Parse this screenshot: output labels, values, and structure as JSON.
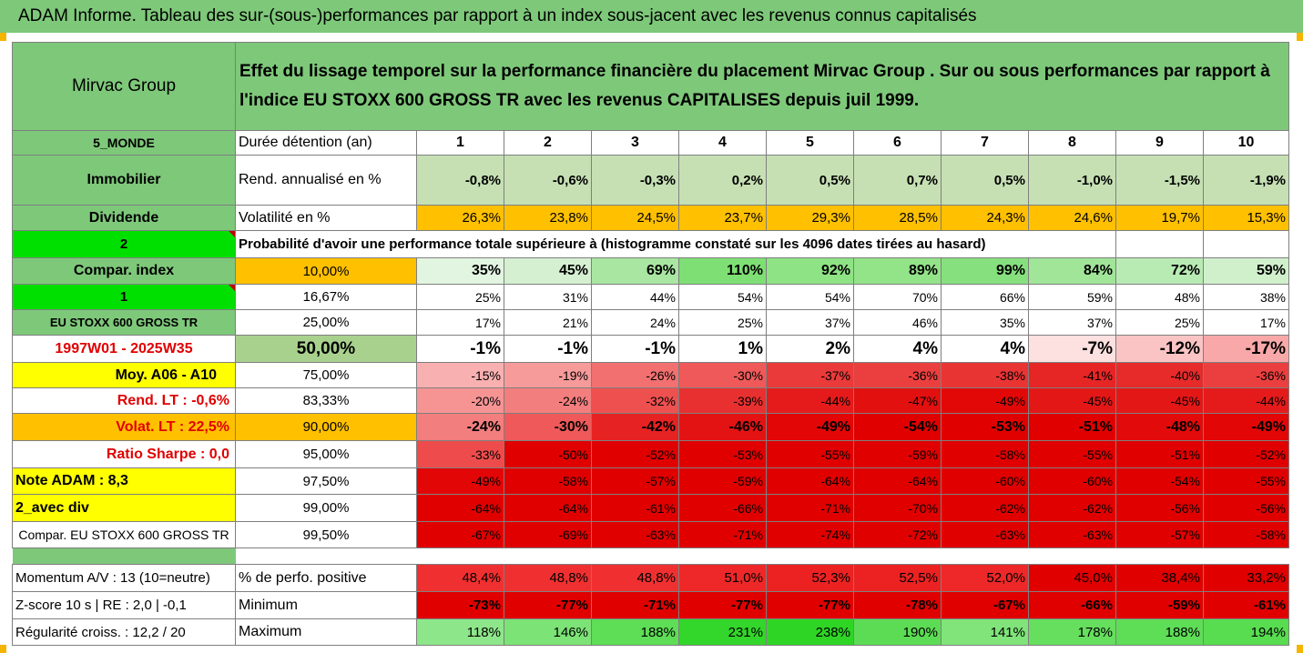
{
  "title": "ADAM Informe. Tableau des sur-(sous-)performances par rapport à un index sous-jacent avec les revenus connus capitalisés",
  "header": {
    "left": "Mirvac Group",
    "line1": "Effet du lissage temporel sur la performance financière du placement Mirvac Group . Sur ou sous performances par rapport à",
    "line2": "l'indice EU STOXX 600 GROSS TR avec les revenus CAPITALISES depuis juil 1999."
  },
  "years_row": {
    "left": "5_MONDE",
    "label": "Durée détention (an)",
    "values": [
      "1",
      "2",
      "3",
      "4",
      "5",
      "6",
      "7",
      "8",
      "9",
      "10"
    ]
  },
  "rend_row": {
    "left": "Immobilier",
    "label": "Rend. annualisé en %",
    "values": [
      "-0,8%",
      "-0,6%",
      "-0,3%",
      "0,2%",
      "0,5%",
      "0,7%",
      "0,5%",
      "-1,0%",
      "-1,5%",
      "-1,9%"
    ]
  },
  "vol_row": {
    "left": "Dividende",
    "label": "Volatilité en %",
    "values": [
      "26,3%",
      "23,8%",
      "24,5%",
      "23,7%",
      "29,3%",
      "28,5%",
      "24,3%",
      "24,6%",
      "19,7%",
      "15,3%"
    ]
  },
  "prob_row": {
    "left": "2",
    "label": "Probabilité d'avoir une performance totale supérieure à (histogramme constaté sur les 4096 dates tirées au hasard)"
  },
  "pct_rows": [
    {
      "left": "Compar. index",
      "pct": "10,00%",
      "values": [
        "35%",
        "45%",
        "69%",
        "110%",
        "92%",
        "89%",
        "99%",
        "84%",
        "72%",
        "59%"
      ],
      "colors": [
        "#e2f5e0",
        "#d5f0d1",
        "#a9e6a1",
        "#7ee074",
        "#8ee384",
        "#93e389",
        "#87e07e",
        "#a1e599",
        "#b8ebb3",
        "#d0f0cc"
      ]
    },
    {
      "left": "1",
      "pct": "16,67%",
      "values": [
        "25%",
        "31%",
        "44%",
        "54%",
        "54%",
        "70%",
        "66%",
        "59%",
        "48%",
        "38%"
      ],
      "colors": [
        "#ffffff",
        "#ffffff",
        "#ffffff",
        "#ffffff",
        "#ffffff",
        "#ffffff",
        "#ffffff",
        "#ffffff",
        "#ffffff",
        "#ffffff"
      ]
    },
    {
      "left": "EU STOXX 600 GROSS TR",
      "pct": "25,00%",
      "values": [
        "17%",
        "21%",
        "24%",
        "25%",
        "37%",
        "46%",
        "35%",
        "37%",
        "25%",
        "17%"
      ],
      "colors": [
        "#ffffff",
        "#ffffff",
        "#ffffff",
        "#ffffff",
        "#ffffff",
        "#ffffff",
        "#ffffff",
        "#ffffff",
        "#ffffff",
        "#ffffff"
      ]
    },
    {
      "left": "1997W01 - 2025W35",
      "pct": "50,00%",
      "values": [
        "-1%",
        "-1%",
        "-1%",
        "1%",
        "2%",
        "4%",
        "4%",
        "-7%",
        "-12%",
        "-17%"
      ],
      "colors": [
        "#ffffff",
        "#ffffff",
        "#ffffff",
        "#ffffff",
        "#ffffff",
        "#ffffff",
        "#ffffff",
        "#fde0e0",
        "#fbc4c4",
        "#f8a8a8"
      ]
    },
    {
      "left": "Moy. A06 - A10",
      "pct": "75,00%",
      "values": [
        "-15%",
        "-19%",
        "-26%",
        "-30%",
        "-37%",
        "-36%",
        "-38%",
        "-41%",
        "-40%",
        "-36%"
      ],
      "colors": [
        "#f9b0b0",
        "#f79a9a",
        "#f27070",
        "#ef5959",
        "#ea3a3a",
        "#eb3f3f",
        "#e93434",
        "#e62525",
        "#e72a2a",
        "#eb3f3f"
      ]
    },
    {
      "left": "Rend. LT :   -0,6%",
      "pct": "83,33%",
      "values": [
        "-20%",
        "-24%",
        "-32%",
        "-39%",
        "-44%",
        "-47%",
        "-49%",
        "-45%",
        "-45%",
        "-44%"
      ],
      "colors": [
        "#f69494",
        "#f37e7e",
        "#ee5050",
        "#e93030",
        "#e51b1b",
        "#e31010",
        "#e20808",
        "#e41717",
        "#e41717",
        "#e51b1b"
      ]
    },
    {
      "left": "Volat. LT :   22,5%",
      "pct": "90,00%",
      "values": [
        "-24%",
        "-30%",
        "-42%",
        "-46%",
        "-49%",
        "-54%",
        "-53%",
        "-51%",
        "-48%",
        "-49%"
      ],
      "colors": [
        "#f37e7e",
        "#ef5959",
        "#e62222",
        "#e31313",
        "#e20606",
        "#e00000",
        "#e00000",
        "#e00000",
        "#e20a0a",
        "#e20606"
      ]
    },
    {
      "left": "Ratio Sharpe :   0,0",
      "pct": "95,00%",
      "values": [
        "-33%",
        "-50%",
        "-52%",
        "-53%",
        "-55%",
        "-59%",
        "-58%",
        "-55%",
        "-51%",
        "-52%"
      ],
      "colors": [
        "#ee4c4c",
        "#e00000",
        "#e00000",
        "#e00000",
        "#e00000",
        "#e00000",
        "#e00000",
        "#e00000",
        "#e00000",
        "#e00000"
      ]
    },
    {
      "left": "Note ADAM : 8,3",
      "pct": "97,50%",
      "values": [
        "-49%",
        "-58%",
        "-57%",
        "-59%",
        "-64%",
        "-64%",
        "-60%",
        "-60%",
        "-54%",
        "-55%"
      ],
      "colors": [
        "#e20606",
        "#e00000",
        "#e00000",
        "#e00000",
        "#e00000",
        "#e00000",
        "#e00000",
        "#e00000",
        "#e00000",
        "#e00000"
      ]
    },
    {
      "left": "2_avec div",
      "pct": "99,00%",
      "values": [
        "-64%",
        "-64%",
        "-61%",
        "-66%",
        "-71%",
        "-70%",
        "-62%",
        "-62%",
        "-56%",
        "-56%"
      ],
      "colors": [
        "#e00000",
        "#e00000",
        "#e00000",
        "#e00000",
        "#e00000",
        "#e00000",
        "#e00000",
        "#e00000",
        "#e00000",
        "#e00000"
      ]
    },
    {
      "left": "Compar. EU STOXX 600 GROSS TR",
      "pct": "99,50%",
      "values": [
        "-67%",
        "-69%",
        "-63%",
        "-71%",
        "-74%",
        "-72%",
        "-63%",
        "-63%",
        "-57%",
        "-58%"
      ],
      "colors": [
        "#e00000",
        "#e00000",
        "#e00000",
        "#e00000",
        "#e00000",
        "#e00000",
        "#e00000",
        "#e00000",
        "#e00000",
        "#e00000"
      ]
    }
  ],
  "momentum_row": {
    "left": "Momentum A/V : 13 (10=neutre)",
    "label": "% de perfo. positive",
    "values": [
      "48,4%",
      "48,8%",
      "48,8%",
      "51,0%",
      "52,3%",
      "52,5%",
      "52,0%",
      "45,0%",
      "38,4%",
      "33,2%"
    ],
    "colors": [
      "#f03030",
      "#f03030",
      "#f03030",
      "#ee2828",
      "#ec2222",
      "#ec2222",
      "#ee2828",
      "#e00000",
      "#e00000",
      "#e00000"
    ]
  },
  "min_row": {
    "left": "Z-score 10 s  | RE : 2,0  | -0,1",
    "label": "Minimum",
    "values": [
      "-73%",
      "-77%",
      "-71%",
      "-77%",
      "-77%",
      "-78%",
      "-67%",
      "-66%",
      "-59%",
      "-61%"
    ],
    "colors": [
      "#e00000",
      "#e00000",
      "#e00000",
      "#e00000",
      "#e00000",
      "#e00000",
      "#e00000",
      "#e00000",
      "#e00000",
      "#e00000"
    ]
  },
  "max_row": {
    "left": "Régularité croiss. : 12,2 / 20",
    "label": "Maximum",
    "values": [
      "118%",
      "146%",
      "188%",
      "231%",
      "238%",
      "190%",
      "141%",
      "178%",
      "188%",
      "194%"
    ],
    "colors": [
      "#8ee68a",
      "#7ce376",
      "#5edd56",
      "#33d62a",
      "#2ed525",
      "#5cdc54",
      "#80e47a",
      "#66de5e",
      "#5edd56",
      "#58dc50"
    ]
  }
}
